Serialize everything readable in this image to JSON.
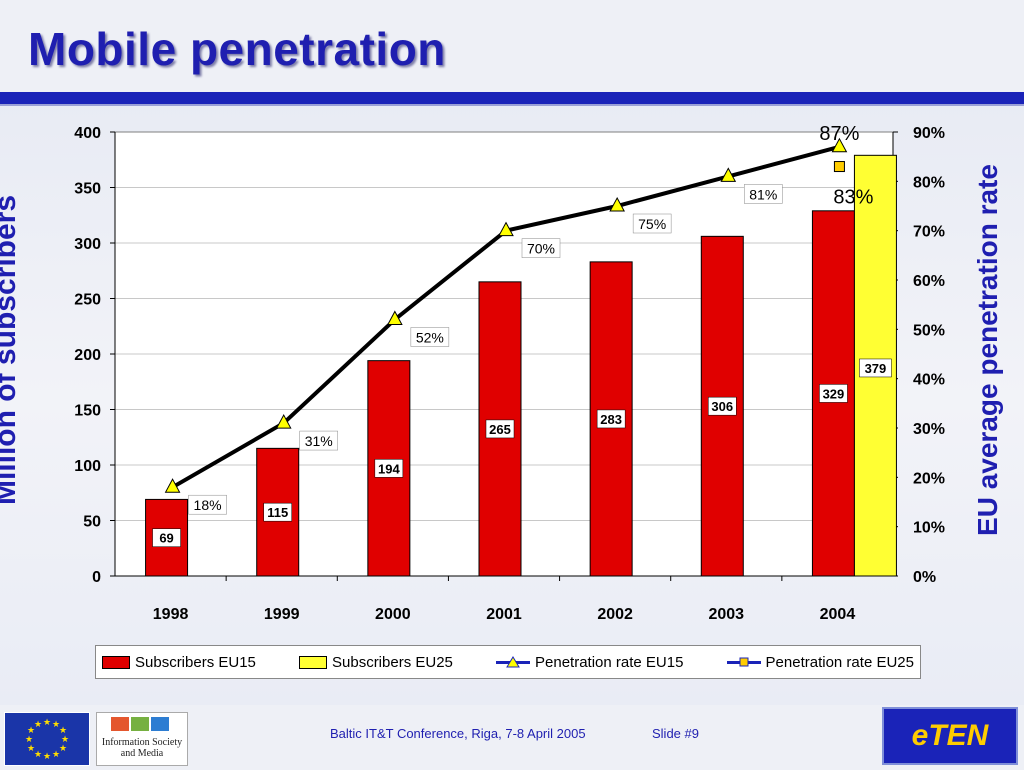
{
  "slide": {
    "title": "Mobile penetration",
    "footer_conference": "Baltic IT&T Conference, Riga, 7-8 April 2005",
    "footer_slide": "Slide #9",
    "logo_left_caption": "Information Society and Media",
    "logo_right_text": "eTEN"
  },
  "colors": {
    "title": "#1f1fb0",
    "rule": "#1a23b8",
    "eu15_bar": "#e00000",
    "eu25_bar": "#ffff33",
    "line": "#000000",
    "marker_eu15": "#ffff00",
    "marker_eu25": "#ffcc00"
  },
  "chart_data": {
    "type": "bar",
    "categories": [
      "1998",
      "1999",
      "2000",
      "2001",
      "2002",
      "2003",
      "2004"
    ],
    "ylabel": "Million of subscribers",
    "ylabel_right": "EU average penetration rate",
    "ylim": [
      0,
      400
    ],
    "y_ticks": [
      "0",
      "50",
      "100",
      "150",
      "200",
      "250",
      "300",
      "350",
      "400"
    ],
    "y2lim": [
      0,
      90
    ],
    "y2_ticks": [
      "0%",
      "10%",
      "20%",
      "30%",
      "40%",
      "50%",
      "60%",
      "70%",
      "80%",
      "90%"
    ],
    "grid": true,
    "legend_position": "bottom",
    "series": [
      {
        "name": "Subscribers EU15",
        "type": "bar",
        "axis": "left",
        "values": [
          69,
          115,
          194,
          265,
          283,
          306,
          329
        ],
        "labels": [
          "69",
          "115",
          "194",
          "265",
          "283",
          "306",
          "329"
        ]
      },
      {
        "name": "Subscribers EU25",
        "type": "bar",
        "axis": "left",
        "values": [
          null,
          null,
          null,
          null,
          null,
          null,
          379
        ],
        "labels": [
          "",
          "",
          "",
          "",
          "",
          "",
          "379"
        ]
      },
      {
        "name": "Penetration rate EU15",
        "type": "line",
        "axis": "right",
        "marker": "triangle",
        "values": [
          18,
          31,
          52,
          70,
          75,
          81,
          87
        ],
        "labels": [
          "18%",
          "31%",
          "52%",
          "70%",
          "75%",
          "81%",
          "87%"
        ]
      },
      {
        "name": "Penetration rate EU25",
        "type": "line",
        "axis": "right",
        "marker": "square",
        "values": [
          null,
          null,
          null,
          null,
          null,
          null,
          83
        ],
        "labels": [
          "",
          "",
          "",
          "",
          "",
          "",
          "83%"
        ]
      }
    ]
  }
}
